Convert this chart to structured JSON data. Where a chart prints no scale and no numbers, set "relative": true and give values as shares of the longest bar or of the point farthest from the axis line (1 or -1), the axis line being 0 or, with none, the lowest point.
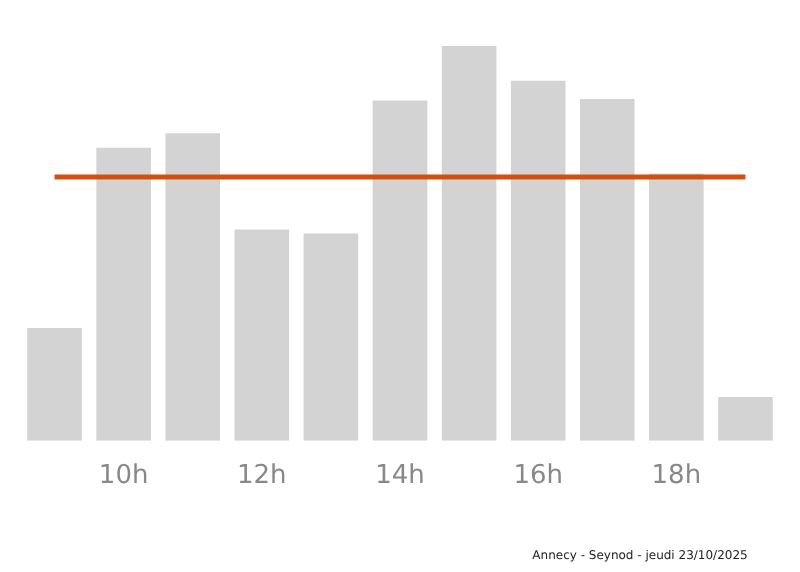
{
  "chart_data": {
    "type": "bar",
    "relative": true,
    "categories": [
      null,
      "10h",
      null,
      "12h",
      null,
      "14h",
      null,
      "16h",
      null,
      "18h",
      null
    ],
    "values": [
      0.286,
      0.742,
      0.779,
      0.535,
      0.525,
      0.862,
      1,
      0.912,
      0.866,
      0.677,
      0.111
    ],
    "color": "#d3d3d3",
    "grid": false,
    "legend": false,
    "ref_lines": [
      {
        "axis": "y",
        "value": 0.668,
        "color": "#d2500f"
      }
    ],
    "annotations": [
      "Annecy - Seynod - jeudi 23/10/2025"
    ]
  }
}
